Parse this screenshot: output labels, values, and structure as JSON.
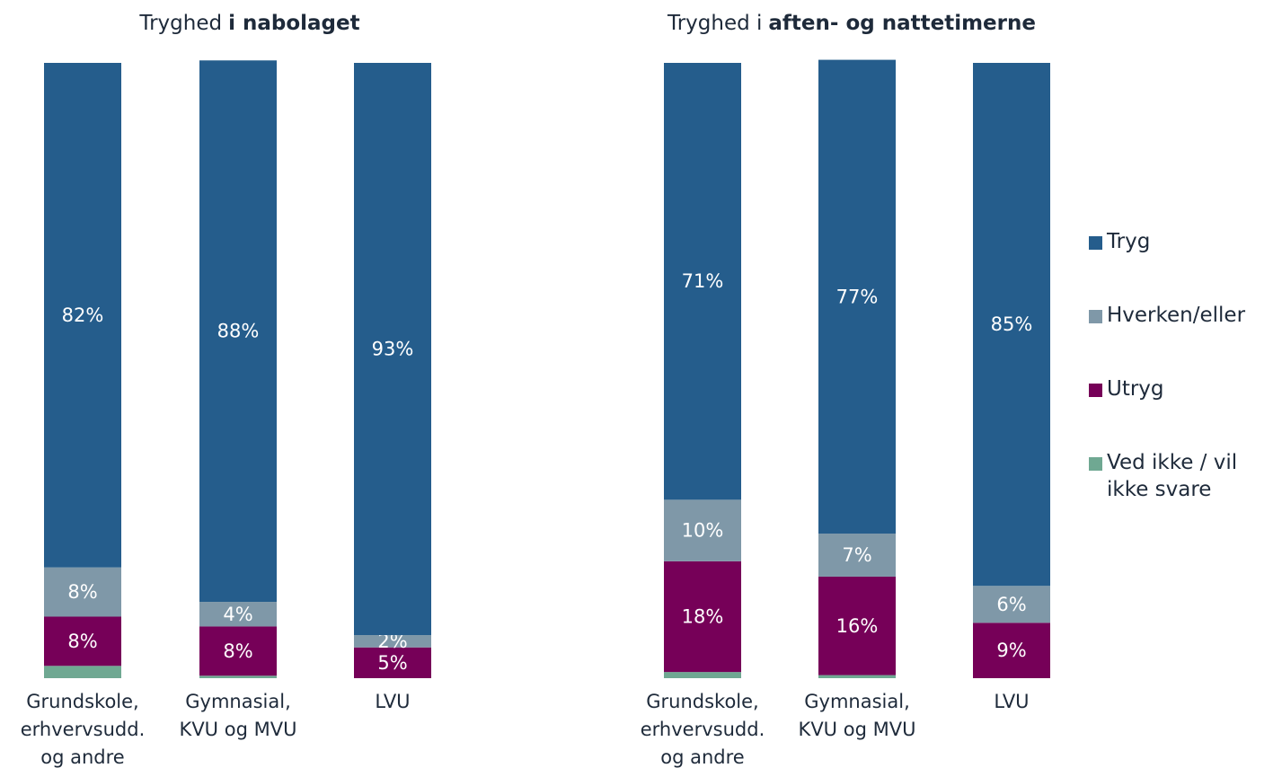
{
  "chart_data": [
    {
      "type": "bar",
      "stacked": true,
      "title": "Tryghed",
      "title_bold": "i nabolaget",
      "categories": [
        [
          "Grundskole,",
          "erhvervsudd.",
          "og andre"
        ],
        [
          "Gymnasial,",
          "KVU og MVU"
        ],
        [
          "LVU"
        ]
      ],
      "ylim": [
        0,
        100
      ],
      "series": [
        {
          "name": "Tryg",
          "color": "#255d8c",
          "values": [
            82,
            88,
            93
          ],
          "value_labels": [
            "82%",
            "88%",
            "93%"
          ]
        },
        {
          "name": "Hverken/eller",
          "color": "#7f98a8",
          "values": [
            8,
            4,
            2
          ],
          "value_labels": [
            "8%",
            "4%",
            "2%"
          ]
        },
        {
          "name": "Utryg",
          "color": "#760058",
          "values": [
            8,
            8,
            5
          ],
          "value_labels": [
            "8%",
            "8%",
            "5%"
          ]
        },
        {
          "name": "Ved ikke / vil ikke svare",
          "color": "#6fa892",
          "values": [
            2,
            0.4,
            0
          ],
          "value_labels": [
            null,
            null,
            null
          ]
        }
      ]
    },
    {
      "type": "bar",
      "stacked": true,
      "title": "Tryghed i",
      "title_bold": "aften- og nattetimerne",
      "categories": [
        [
          "Grundskole,",
          "erhvervsudd.",
          "og andre"
        ],
        [
          "Gymnasial,",
          "KVU og MVU"
        ],
        [
          "LVU"
        ]
      ],
      "ylim": [
        0,
        100
      ],
      "legend": "right",
      "series": [
        {
          "name": "Tryg",
          "color": "#255d8c",
          "values": [
            71,
            77,
            85
          ],
          "value_labels": [
            "71%",
            "77%",
            "85%"
          ]
        },
        {
          "name": "Hverken/eller",
          "color": "#7f98a8",
          "values": [
            10,
            7,
            6
          ],
          "value_labels": [
            "10%",
            "7%",
            "6%"
          ]
        },
        {
          "name": "Utryg",
          "color": "#760058",
          "values": [
            18,
            16,
            9
          ],
          "value_labels": [
            "18%",
            "16%",
            "9%"
          ]
        },
        {
          "name": "Ved ikke / vil ikke svare",
          "color": "#6fa892",
          "values": [
            1,
            0.5,
            0
          ],
          "value_labels": [
            null,
            null,
            null
          ]
        }
      ]
    }
  ]
}
